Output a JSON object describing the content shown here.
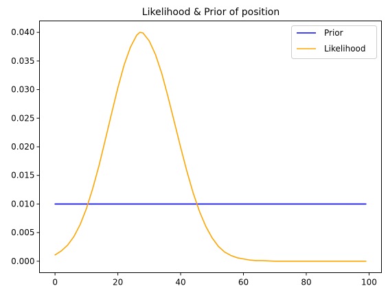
{
  "chart_data": {
    "type": "line",
    "title": "Likelihood & Prior of position",
    "xlabel": "",
    "ylabel": "",
    "xlim": [
      -4.95,
      103.95
    ],
    "ylim": [
      -0.002,
      0.042
    ],
    "grid": false,
    "legend_position": "top-right",
    "x_ticks": [
      0,
      20,
      40,
      60,
      80,
      100
    ],
    "x_tick_labels": [
      "0",
      "20",
      "40",
      "60",
      "80",
      "100"
    ],
    "y_ticks": [
      0.0,
      0.005,
      0.01,
      0.015,
      0.02,
      0.025,
      0.03,
      0.035,
      0.04
    ],
    "y_tick_labels": [
      "0.000",
      "0.005",
      "0.010",
      "0.015",
      "0.020",
      "0.025",
      "0.030",
      "0.035",
      "0.040"
    ],
    "series": [
      {
        "name": "Prior",
        "color": "#0000ff",
        "x": [
          0,
          99
        ],
        "y": [
          0.01,
          0.01
        ]
      },
      {
        "name": "Likelihood",
        "color": "#ffa500",
        "x": [
          0,
          2,
          4,
          6,
          8,
          10,
          12,
          14,
          16,
          18,
          20,
          22,
          24,
          26,
          27,
          28,
          30,
          32,
          34,
          36,
          38,
          40,
          42,
          44,
          46,
          48,
          50,
          52,
          54,
          56,
          58,
          60,
          62,
          64,
          66,
          70,
          75,
          80,
          85,
          90,
          95,
          99
        ],
        "y": [
          0.0011,
          0.0018,
          0.0028,
          0.0043,
          0.0064,
          0.0092,
          0.0127,
          0.0167,
          0.0212,
          0.0258,
          0.0303,
          0.0343,
          0.0374,
          0.0395,
          0.04,
          0.0399,
          0.0385,
          0.0361,
          0.0328,
          0.0287,
          0.0243,
          0.0199,
          0.0157,
          0.0119,
          0.0087,
          0.0061,
          0.0041,
          0.0026,
          0.0016,
          0.001,
          0.0006,
          0.0004,
          0.0002,
          0.0001,
          0.0001,
          0.0,
          0.0,
          0.0,
          0.0,
          0.0,
          0.0,
          0.0
        ]
      }
    ]
  }
}
